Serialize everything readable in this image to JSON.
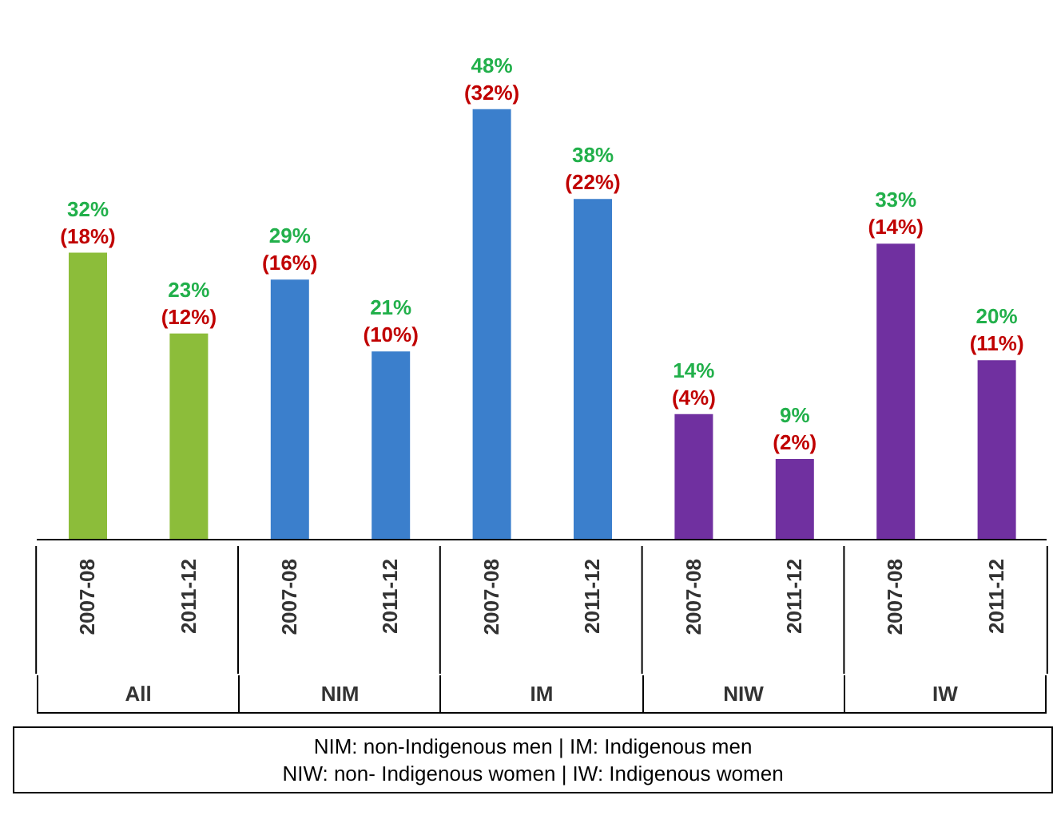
{
  "chart_data": {
    "type": "bar",
    "categories": [
      "2007-08",
      "2011-12",
      "2007-08",
      "2011-12",
      "2007-08",
      "2011-12",
      "2007-08",
      "2011-12",
      "2007-08",
      "2011-12"
    ],
    "values": [
      32,
      23,
      29,
      21,
      48,
      38,
      14,
      9,
      33,
      20
    ],
    "colors": [
      "#8cbd3a",
      "#8cbd3a",
      "#3b7fcc",
      "#3b7fcc",
      "#3b7fcc",
      "#3b7fcc",
      "#7030a0",
      "#7030a0",
      "#7030a0",
      "#7030a0"
    ],
    "value_labels": [
      "32%\n(18%)",
      "23%\n(12%)",
      "29%\n(16%)",
      "21%\n(10%)",
      "48%\n(32%)",
      "38%\n(22%)",
      "14%\n(4%)",
      "9%\n(2%)",
      "33%\n(14%)",
      "20%\n(11%)"
    ],
    "annotations": [
      "All",
      "NIM",
      "IM",
      "NIW",
      "IW",
      "NIM: non-Indigenous men | IM: Indigenous men",
      "NIW: non- Indigenous women | IW: Indigenous women"
    ]
  }
}
